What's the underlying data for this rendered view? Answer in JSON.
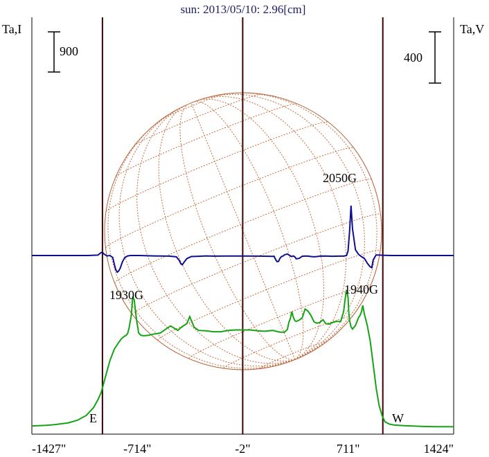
{
  "chart_data": {
    "type": "line",
    "title": "sun: 2013/05/10: 2.96[cm]",
    "left_axis_label": "Ta,I",
    "right_axis_label": "Ta,V",
    "left_scale_label": "900",
    "right_scale_label": "400",
    "xlim": [
      -1427,
      1424
    ],
    "x_ticks": [
      {
        "value": -1427,
        "label": "-1427\""
      },
      {
        "value": -714,
        "label": "-714\""
      },
      {
        "value": -2,
        "label": "-2\""
      },
      {
        "value": 711,
        "label": "711\""
      },
      {
        "value": 1424,
        "label": "1424\""
      }
    ],
    "vertical_lines": [
      -950,
      -2,
      945
    ],
    "limb_labels": {
      "east": "E",
      "west": "W"
    },
    "annotations": [
      {
        "text": "2050G",
        "x": 820,
        "series": "Ta,I"
      },
      {
        "text": "1930G",
        "x": -845,
        "series": "Ta,V"
      },
      {
        "text": "1940G",
        "x": 825,
        "series": "Ta,V"
      }
    ],
    "series": [
      {
        "name": "Ta,I",
        "color": "#13a313",
        "x": [
          -1427,
          -1380,
          -1330,
          -1280,
          -1230,
          -1180,
          -1120,
          -1060,
          -1010,
          -980,
          -960,
          -950,
          -940,
          -930,
          -900,
          -870,
          -840,
          -820,
          -800,
          -790,
          -780,
          -770,
          -755,
          -745,
          -735,
          -720,
          -705,
          -690,
          -670,
          -640,
          -600,
          -560,
          -520,
          -490,
          -460,
          -440,
          -420,
          -400,
          -380,
          -360,
          -330,
          -300,
          -250,
          -200,
          -150,
          -100,
          -50,
          0,
          50,
          100,
          150,
          200,
          250,
          280,
          300,
          310,
          320,
          330,
          340,
          350,
          360,
          380,
          400,
          420,
          440,
          460,
          480,
          500,
          520,
          540,
          560,
          580,
          600,
          630,
          660,
          680,
          690,
          700,
          710,
          715,
          720,
          730,
          740,
          760,
          780,
          790,
          800,
          810,
          820,
          840,
          860,
          880,
          900,
          920,
          940,
          960,
          990,
          1020,
          1060,
          1100,
          1150,
          1200,
          1250,
          1300,
          1350,
          1400,
          1424
        ],
        "y": [
          30,
          36,
          44,
          56,
          76,
          100,
          155,
          262,
          440,
          620,
          770,
          880,
          1000,
          1130,
          1490,
          1750,
          1900,
          1990,
          2040,
          2060,
          2100,
          2220,
          2500,
          2930,
          2850,
          2420,
          2110,
          2060,
          2050,
          2060,
          2090,
          2110,
          2200,
          2270,
          2210,
          2170,
          2230,
          2280,
          2320,
          2480,
          2240,
          2170,
          2160,
          2140,
          2140,
          2170,
          2180,
          2180,
          2180,
          2160,
          2150,
          2170,
          2130,
          2130,
          2190,
          2350,
          2440,
          2590,
          2470,
          2390,
          2370,
          2400,
          2450,
          2650,
          2600,
          2500,
          2360,
          2330,
          2350,
          2410,
          2320,
          2310,
          2340,
          2370,
          2370,
          2590,
          2860,
          3080,
          2910,
          2570,
          2400,
          2250,
          2200,
          2280,
          2450,
          2500,
          2580,
          2730,
          2540,
          2280,
          1930,
          1410,
          880,
          490,
          260,
          120,
          70,
          50,
          40,
          33,
          28,
          20,
          16,
          13,
          12,
          11,
          10
        ]
      },
      {
        "name": "Ta,V",
        "color": "#0d0d91",
        "x": [
          -1427,
          -1050,
          -980,
          -960,
          -950,
          -940,
          -920,
          -900,
          -880,
          -870,
          -860,
          -850,
          -840,
          -830,
          -815,
          -800,
          -780,
          -760,
          -700,
          -600,
          -500,
          -450,
          -430,
          -420,
          -410,
          -400,
          -380,
          -350,
          -300,
          -250,
          -200,
          -100,
          0,
          100,
          180,
          200,
          210,
          220,
          230,
          240,
          250,
          260,
          270,
          280,
          300,
          320,
          330,
          340,
          350,
          360,
          380,
          400,
          420,
          440,
          460,
          480,
          500,
          520,
          560,
          600,
          650,
          680,
          700,
          710,
          720,
          730,
          740,
          760,
          780,
          800,
          820,
          830,
          840,
          850,
          860,
          870,
          880,
          890,
          900,
          940,
          1000,
          1100,
          1200,
          1300,
          1424
        ],
        "y": [
          0,
          0,
          3,
          22,
          26,
          12,
          -3,
          0,
          -15,
          -67,
          -110,
          -130,
          -120,
          -100,
          -50,
          -18,
          -3,
          0,
          0,
          -3,
          -5,
          -10,
          -40,
          -65,
          -72,
          -55,
          -25,
          -8,
          -6,
          -3,
          -5,
          -4,
          -4,
          -5,
          -6,
          -7,
          -6,
          -30,
          -48,
          -46,
          -22,
          -8,
          -5,
          5,
          12,
          -3,
          -8,
          -3,
          -10,
          -26,
          -22,
          -6,
          -4,
          -5,
          -8,
          -10,
          -8,
          -5,
          -4,
          -6,
          -5,
          -5,
          0,
          35,
          180,
          390,
          210,
          45,
          10,
          -8,
          -22,
          -40,
          -60,
          -75,
          -88,
          -95,
          -35,
          -15,
          5,
          2,
          0,
          0,
          0,
          0,
          0
        ]
      }
    ]
  }
}
